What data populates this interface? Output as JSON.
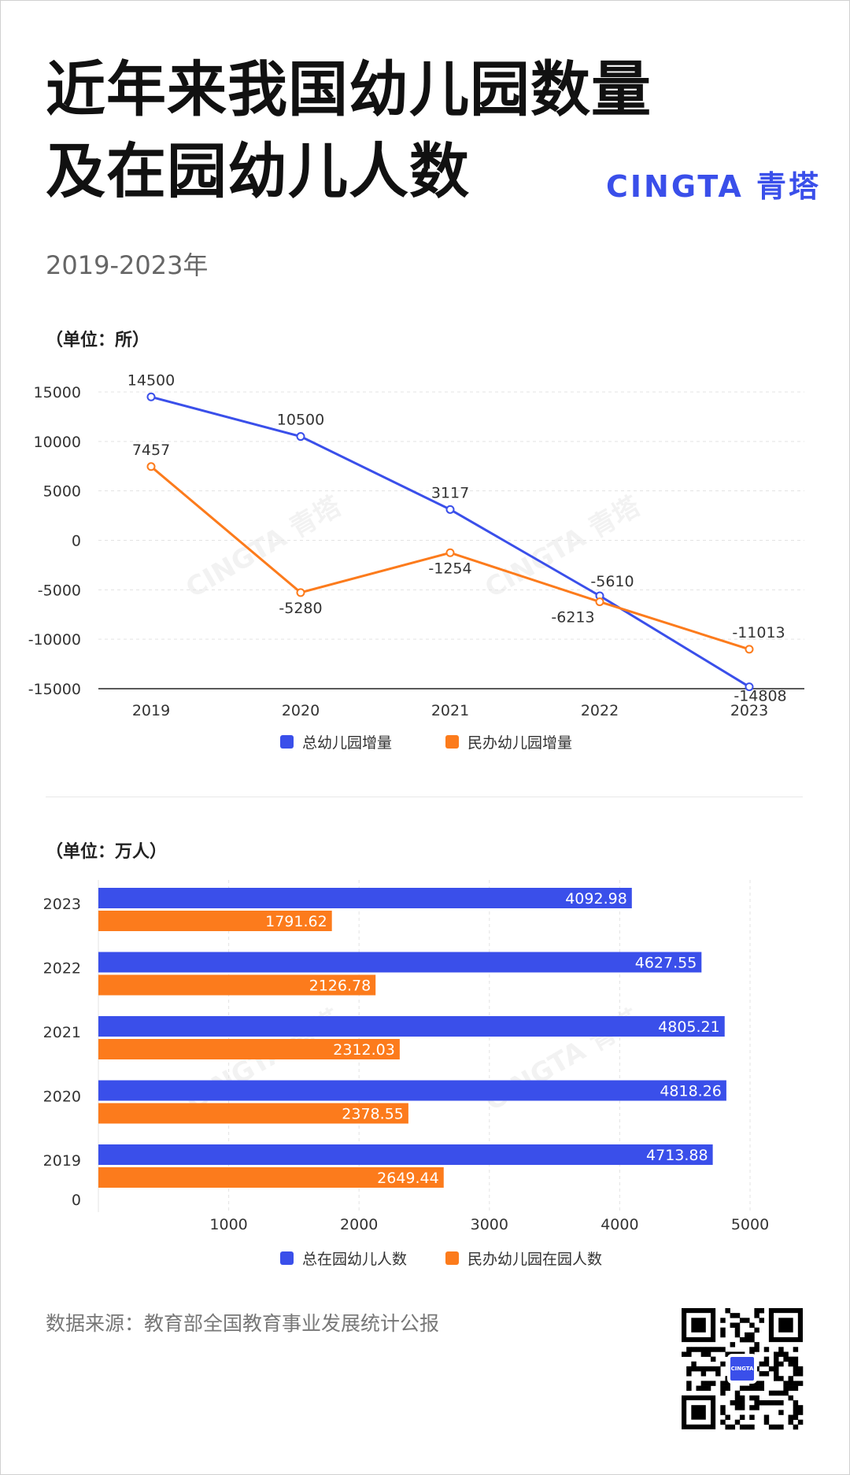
{
  "header": {
    "title_line1": "近年来我国幼儿园数量",
    "title_line2": "及在园幼儿人数",
    "brand": "CINGTA 青塔",
    "subtitle": "2019-2023年",
    "watermark": "CINGTA 青塔"
  },
  "colors": {
    "blue": "#3a4fea",
    "orange": "#fc7b1c",
    "brand": "#3a4fea"
  },
  "line_unit": "（单位：所）",
  "bar_unit": "（单位：万人）",
  "source": "数据来源：教育部全国教育事业发展统计公报",
  "qr_label": "CINGTA",
  "chart_data": [
    {
      "type": "line",
      "categories": [
        "2019",
        "2020",
        "2021",
        "2022",
        "2023"
      ],
      "series": [
        {
          "name": "总幼儿园增量",
          "color": "#3a4fea",
          "values": [
            14500,
            10500,
            3117,
            -5610,
            -14808
          ]
        },
        {
          "name": "民办幼儿园增量",
          "color": "#fc7b1c",
          "values": [
            7457,
            -5280,
            -1254,
            -6213,
            -11013
          ]
        }
      ],
      "yticks": [
        "15000",
        "10000",
        "5000",
        "0",
        "-5000",
        "-10000",
        "-15000"
      ],
      "ylim": [
        -15000,
        15000
      ],
      "ylabel": "（单位：所）",
      "grid": true,
      "legend": "bottom"
    },
    {
      "type": "bar",
      "orientation": "horizontal",
      "categories": [
        "2023",
        "2022",
        "2021",
        "2020",
        "2019"
      ],
      "series": [
        {
          "name": "总在园幼儿人数",
          "color": "#3a4fea",
          "values": [
            4092.98,
            4627.55,
            4805.21,
            4818.26,
            4713.88
          ]
        },
        {
          "name": "民办幼儿园在园人数",
          "color": "#fc7b1c",
          "values": [
            1791.62,
            2126.78,
            2312.03,
            2378.55,
            2649.44
          ]
        }
      ],
      "value_labels": [
        [
          "4092.98",
          "4627.55",
          "4805.21",
          "4818.26",
          "4713.88"
        ],
        [
          "1791.62",
          "2126.78",
          "2312.03",
          "2378.55",
          "2649.44"
        ]
      ],
      "xticks": [
        "1000",
        "2000",
        "3000",
        "4000",
        "5000"
      ],
      "origin_label": "0",
      "xlim": [
        0,
        5000
      ],
      "xlabel": "（单位：万人）",
      "grid": true,
      "legend": "bottom"
    }
  ]
}
